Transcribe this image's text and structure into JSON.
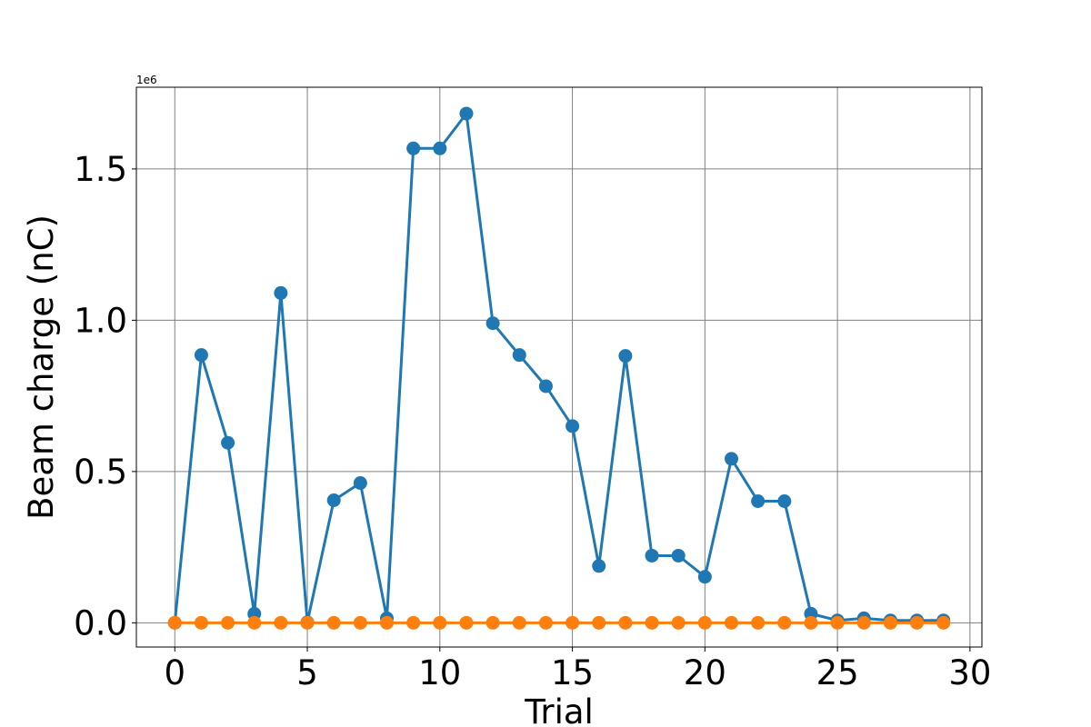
{
  "chart_data": {
    "type": "line",
    "xlabel": "Trial",
    "ylabel": "Beam charge (nC)",
    "y_offset_text": "1e6",
    "xlim": [
      -1.45,
      30.45
    ],
    "ylim": [
      -80000,
      1770000
    ],
    "x_ticks": [
      0,
      5,
      10,
      15,
      20,
      25,
      30
    ],
    "x_tick_labels": [
      "0",
      "5",
      "10",
      "15",
      "20",
      "25",
      "30"
    ],
    "y_ticks": [
      0,
      500000,
      1000000,
      1500000
    ],
    "y_tick_labels": [
      "0.0",
      "0.5",
      "1.0",
      "1.5"
    ],
    "grid": true,
    "x": [
      0,
      1,
      2,
      3,
      4,
      5,
      6,
      7,
      8,
      9,
      10,
      11,
      12,
      13,
      14,
      15,
      16,
      17,
      18,
      19,
      20,
      21,
      22,
      23,
      24,
      25,
      26,
      27,
      28,
      29
    ],
    "series": [
      {
        "color": "#1f77b4",
        "values": [
          0,
          885000,
          595000,
          30000,
          1090000,
          2000,
          405000,
          462000,
          15000,
          1568000,
          1568000,
          1683000,
          990000,
          885000,
          782000,
          650000,
          188000,
          882000,
          222000,
          222000,
          152000,
          542000,
          402000,
          402000,
          30000,
          8000,
          15000,
          8000,
          8000,
          8000
        ]
      },
      {
        "color": "#ff7f0e",
        "values": [
          0,
          0,
          0,
          0,
          0,
          0,
          0,
          0,
          0,
          0,
          0,
          0,
          0,
          0,
          0,
          0,
          0,
          0,
          0,
          0,
          0,
          0,
          0,
          0,
          0,
          0,
          0,
          0,
          0,
          0
        ]
      }
    ]
  }
}
